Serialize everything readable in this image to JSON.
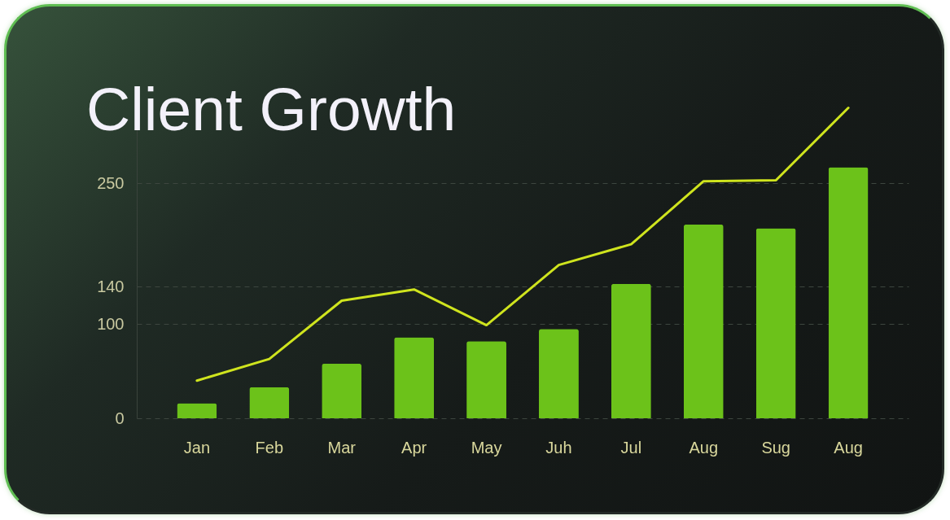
{
  "chart_data": {
    "type": "bar",
    "title": "Client Growth",
    "categories": [
      "Jan",
      "Feb",
      "Mar",
      "Apr",
      "May",
      "Juh",
      "Jul",
      "Aug",
      "Sug",
      "Aug"
    ],
    "series": [
      {
        "color": "#6cc21a",
        "values": [
          16,
          33,
          58,
          86,
          82,
          95,
          143,
          206,
          202,
          267
        ]
      },
      {
        "type": "line",
        "color": "#cfe41e",
        "values": [
          40,
          63,
          125,
          137,
          99,
          163,
          185,
          252,
          253,
          330
        ]
      }
    ],
    "ylim": [
      0,
      340
    ],
    "yticks": [
      0,
      100,
      140,
      250
    ],
    "grid": "y"
  }
}
